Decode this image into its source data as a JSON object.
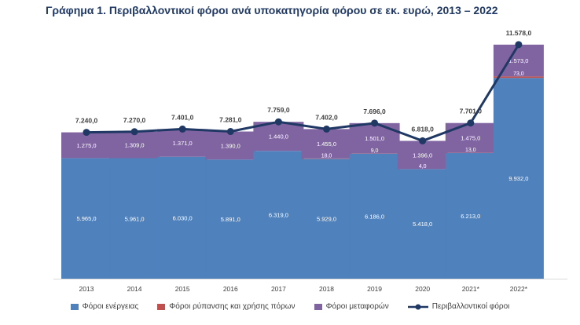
{
  "chart_data": {
    "type": "bar",
    "stacked": true,
    "title": "Γράφημα 1. Περιβαλλοντικοί φόροι ανά υποκατηγορία φόρου σε εκ. ευρώ, 2013 – 2022",
    "categories": [
      "2013",
      "2014",
      "2015",
      "2016",
      "2017",
      "2018",
      "2019",
      "2020",
      "2021*",
      "2022*"
    ],
    "series": [
      {
        "name": "Φόροι ενέργειας",
        "color": "#4f81bd",
        "values": [
          5965.0,
          5961.0,
          6030.0,
          5891.0,
          6319.0,
          5929.0,
          6186.0,
          5418.0,
          6213.0,
          9932.0
        ],
        "labels": [
          "5.965,0",
          "5.961,0",
          "6.030,0",
          "5.891,0",
          "6.319,0",
          "5.929,0",
          "6.186,0",
          "5.418,0",
          "6.213,0",
          "9.932,0"
        ]
      },
      {
        "name": "Φόροι ρύπανσης και χρήσης πόρων",
        "color": "#c0504d",
        "values": [
          0,
          0,
          0,
          0,
          0,
          18.0,
          9.0,
          4.0,
          13.0,
          73.0
        ],
        "labels": [
          "",
          "",
          "",
          "",
          "",
          "18,0",
          "9,0",
          "4,0",
          "13,0",
          "73,0"
        ]
      },
      {
        "name": "Φόροι μεταφορών",
        "color": "#8064a2",
        "values": [
          1275.0,
          1309.0,
          1371.0,
          1390.0,
          1440.0,
          1455.0,
          1501.0,
          1396.0,
          1475.0,
          1573.0
        ],
        "labels": [
          "1.275,0",
          "1.309,0",
          "1.371,0",
          "1.390,0",
          "1.440,0",
          "1.455,0",
          "1.501,0",
          "1.396,0",
          "1.475,0",
          "1.573,0"
        ]
      },
      {
        "name": "Περιβαλλοντικοί φόροι",
        "type": "line",
        "color": "#1f3864",
        "values": [
          7240.0,
          7270.0,
          7401.0,
          7281.0,
          7759.0,
          7402.0,
          7696.0,
          6818.0,
          7701.0,
          11578.0
        ],
        "labels": [
          "7.240,0",
          "7.270,0",
          "7.401,0",
          "7.281,0",
          "7.759,0",
          "7.402,0",
          "7.696,0",
          "6.818,0",
          "7.701,0",
          "11.578,0"
        ]
      }
    ],
    "legend_position": "bottom",
    "grid": false,
    "ylim": [
      0,
      12000
    ]
  }
}
